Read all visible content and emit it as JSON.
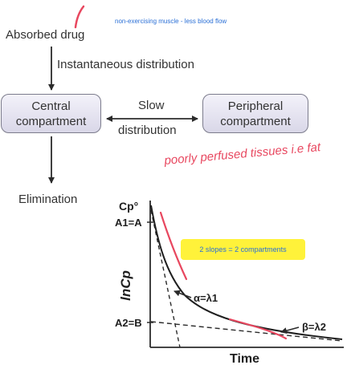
{
  "annotations": {
    "blue_note": "non-exercising muscle - less blood flow",
    "handwritten": "poorly perfused tissues i.e fat",
    "highlight_note": "2 slopes = 2 compartments"
  },
  "flow": {
    "absorbed_drug": "Absorbed drug",
    "instantaneous_distribution": "Instantaneous distribution",
    "central_line1": "Central",
    "central_line2": "compartment",
    "slow": "Slow",
    "distribution": "distribution",
    "peripheral_line1": "Peripheral",
    "peripheral_line2": "compartment",
    "elimination": "Elimination"
  },
  "plot": {
    "y_axis_label": "lnCp",
    "cp0_label": "Cp°",
    "a1_label": "A1=A",
    "a2_label": "A2=B",
    "alpha_label": "α=λ1",
    "beta_label": "β=λ2",
    "x_axis_label": "Time"
  },
  "colors": {
    "handwriting_pink": "#e8475f",
    "highlight_yellow": "#fff23a",
    "note_blue": "#2a6fd6",
    "box_fill": "#e6e4f1"
  }
}
